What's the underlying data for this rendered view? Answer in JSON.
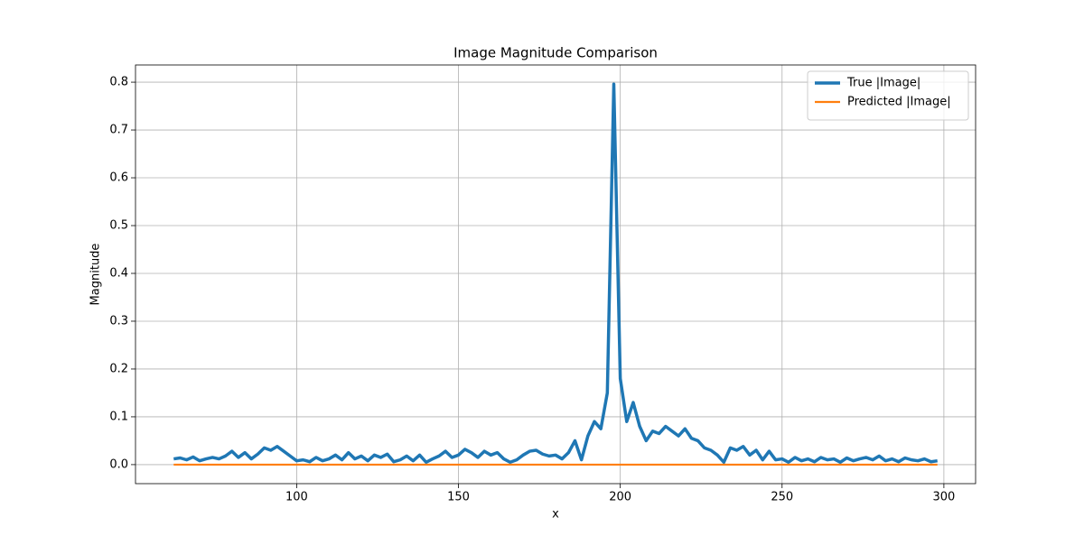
{
  "chart_data": {
    "type": "line",
    "title": "Image Magnitude Comparison",
    "x_label": "x",
    "y_label": "Magnitude",
    "x": [
      62,
      64,
      66,
      68,
      70,
      72,
      74,
      76,
      78,
      80,
      82,
      84,
      86,
      88,
      90,
      92,
      94,
      96,
      98,
      100,
      102,
      104,
      106,
      108,
      110,
      112,
      114,
      116,
      118,
      120,
      122,
      124,
      126,
      128,
      130,
      132,
      134,
      136,
      138,
      140,
      142,
      144,
      146,
      148,
      150,
      152,
      154,
      156,
      158,
      160,
      162,
      164,
      166,
      168,
      170,
      172,
      174,
      176,
      178,
      180,
      182,
      184,
      186,
      188,
      190,
      192,
      194,
      196,
      198,
      200,
      202,
      204,
      206,
      208,
      210,
      212,
      214,
      216,
      218,
      220,
      222,
      224,
      226,
      228,
      230,
      232,
      234,
      236,
      238,
      240,
      242,
      244,
      246,
      248,
      250,
      252,
      254,
      256,
      258,
      260,
      262,
      264,
      266,
      268,
      270,
      272,
      274,
      276,
      278,
      280,
      282,
      284,
      286,
      288,
      290,
      292,
      294,
      296,
      298
    ],
    "series": [
      {
        "name": "True |Image|",
        "color": "#1f77b4",
        "width": 3.5,
        "values": [
          0.012,
          0.014,
          0.01,
          0.016,
          0.008,
          0.012,
          0.015,
          0.012,
          0.018,
          0.028,
          0.015,
          0.025,
          0.012,
          0.022,
          0.035,
          0.03,
          0.038,
          0.028,
          0.018,
          0.008,
          0.01,
          0.006,
          0.015,
          0.008,
          0.012,
          0.02,
          0.01,
          0.025,
          0.012,
          0.018,
          0.008,
          0.02,
          0.015,
          0.022,
          0.006,
          0.01,
          0.018,
          0.008,
          0.02,
          0.005,
          0.012,
          0.018,
          0.028,
          0.015,
          0.02,
          0.032,
          0.025,
          0.015,
          0.028,
          0.02,
          0.025,
          0.012,
          0.005,
          0.01,
          0.02,
          0.028,
          0.03,
          0.022,
          0.018,
          0.02,
          0.012,
          0.025,
          0.05,
          0.01,
          0.06,
          0.09,
          0.075,
          0.15,
          0.796,
          0.18,
          0.09,
          0.13,
          0.08,
          0.05,
          0.07,
          0.065,
          0.08,
          0.07,
          0.06,
          0.075,
          0.055,
          0.05,
          0.035,
          0.03,
          0.02,
          0.005,
          0.035,
          0.03,
          0.038,
          0.02,
          0.03,
          0.01,
          0.028,
          0.01,
          0.012,
          0.005,
          0.015,
          0.008,
          0.012,
          0.006,
          0.015,
          0.01,
          0.012,
          0.005,
          0.014,
          0.008,
          0.012,
          0.015,
          0.01,
          0.018,
          0.008,
          0.012,
          0.006,
          0.014,
          0.01,
          0.008,
          0.012,
          0.006,
          0.008
        ]
      },
      {
        "name": "Predicted |Image|",
        "color": "#ff7f0e",
        "width": 2.2,
        "values": [
          0,
          0,
          0,
          0,
          0,
          0,
          0,
          0,
          0,
          0,
          0,
          0,
          0,
          0,
          0,
          0,
          0,
          0,
          0,
          0,
          0,
          0,
          0,
          0,
          0,
          0,
          0,
          0,
          0,
          0,
          0,
          0,
          0,
          0,
          0,
          0,
          0,
          0,
          0,
          0,
          0,
          0,
          0,
          0,
          0,
          0,
          0,
          0,
          0,
          0,
          0,
          0,
          0,
          0,
          0,
          0,
          0,
          0,
          0,
          0,
          0,
          0,
          0,
          0,
          0,
          0,
          0,
          0,
          0,
          0,
          0,
          0,
          0,
          0,
          0,
          0,
          0,
          0,
          0,
          0,
          0,
          0,
          0,
          0,
          0,
          0,
          0,
          0,
          0,
          0,
          0,
          0,
          0,
          0,
          0,
          0,
          0,
          0,
          0,
          0,
          0,
          0,
          0,
          0,
          0,
          0,
          0,
          0,
          0,
          0,
          0,
          0,
          0,
          0,
          0,
          0,
          0,
          0,
          0
        ]
      }
    ],
    "xlim": [
      50.2,
      309.8
    ],
    "ylim": [
      -0.0398,
      0.836
    ],
    "xticks": [
      100,
      150,
      200,
      250,
      300
    ],
    "yticks": [
      {
        "value": 0,
        "label": "0.0"
      },
      0.1,
      0.2,
      0.3,
      0.4,
      0.5,
      0.6,
      0.7,
      0.8
    ],
    "grid": true,
    "legend": "upper right"
  }
}
